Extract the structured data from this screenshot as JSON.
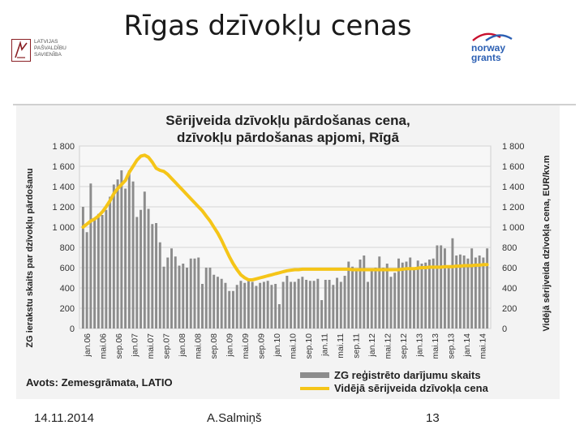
{
  "slide": {
    "title": "Rīgas dzīvokļu cenas",
    "date": "14.11.2014",
    "author": "A.Salmiņš",
    "page_number": "13"
  },
  "logos": {
    "left_lines": [
      "LATVIJAS",
      "PAŠVALDĪBU",
      "SAVIENĪBA"
    ],
    "right_lines": [
      "norway",
      "grants"
    ]
  },
  "colors": {
    "bar": "#8c8c8c",
    "line": "#f5c518",
    "frame": "#f3f3f3",
    "grid": "#d6d6d6"
  },
  "chart_data": {
    "type": "bar",
    "title_lines": [
      "Sērijveida dzīvokļu pārdošanas cena,",
      "dzīvokļu pārdošanas apjomi, Rīgā"
    ],
    "ylabel_left": "ZG ierakstu skaits par dzīvokļu pārdošanu",
    "ylabel_right": "Vidējā sērijveida dzīvokļa cena, EUR/kv.m",
    "ylim": [
      0,
      1800
    ],
    "yticks": [
      0,
      200,
      400,
      600,
      800,
      1000,
      1200,
      1400,
      1600,
      1800
    ],
    "ytick_labels": [
      "0",
      "200",
      "400",
      "600",
      "800",
      "1 000",
      "1 200",
      "1 400",
      "1 600",
      "1 800"
    ],
    "x_tick_labels": [
      "jan.06",
      "mai.06",
      "sep.06",
      "jan.07",
      "mai.07",
      "sep.07",
      "jan.08",
      "mai.08",
      "sep.08",
      "jan.09",
      "mai.09",
      "sep.09",
      "jan.10",
      "mai.10",
      "sep.10",
      "jan.11",
      "mai.11",
      "sep.11",
      "jan.12",
      "mai.12",
      "sep.12",
      "jan.13",
      "mai.13",
      "sep.13",
      "jan.14",
      "mai.14"
    ],
    "source": "Avots: Zemesgrāmata, LATIO",
    "series": [
      {
        "name": "ZG reģistrēto darījumu skaits",
        "kind": "bar",
        "values": [
          1200,
          950,
          1430,
          1080,
          1130,
          1120,
          1170,
          1300,
          1420,
          1470,
          1560,
          1380,
          1560,
          1450,
          1100,
          1170,
          1350,
          1180,
          1030,
          1040,
          850,
          610,
          700,
          790,
          710,
          620,
          640,
          600,
          690,
          690,
          700,
          440,
          600,
          600,
          530,
          510,
          490,
          450,
          370,
          370,
          430,
          470,
          450,
          470,
          460,
          420,
          450,
          460,
          470,
          430,
          440,
          240,
          460,
          520,
          460,
          460,
          490,
          510,
          480,
          470,
          470,
          490,
          280,
          480,
          480,
          430,
          500,
          460,
          520,
          660,
          610,
          580,
          680,
          720,
          460,
          590,
          600,
          710,
          600,
          640,
          510,
          550,
          690,
          650,
          660,
          700,
          590,
          670,
          640,
          650,
          680,
          690,
          820,
          820,
          790,
          600,
          890,
          720,
          730,
          720,
          690,
          790,
          700,
          720,
          700,
          790
        ]
      },
      {
        "name": "Vidējā sērijveida dzīvokļa cena",
        "kind": "line",
        "values": [
          1000,
          1030,
          1060,
          1080,
          1110,
          1150,
          1200,
          1260,
          1330,
          1380,
          1420,
          1460,
          1540,
          1600,
          1660,
          1700,
          1710,
          1690,
          1640,
          1580,
          1560,
          1550,
          1520,
          1480,
          1440,
          1400,
          1360,
          1320,
          1280,
          1240,
          1200,
          1160,
          1110,
          1060,
          1000,
          940,
          870,
          790,
          710,
          640,
          580,
          530,
          500,
          480,
          480,
          490,
          500,
          510,
          520,
          530,
          540,
          550,
          560,
          570,
          575,
          580,
          580,
          585,
          585,
          585,
          585,
          585,
          585,
          585,
          585,
          585,
          585,
          585,
          585,
          585,
          580,
          580,
          580,
          580,
          580,
          580,
          580,
          580,
          580,
          580,
          580,
          580,
          580,
          585,
          590,
          590,
          590,
          595,
          600,
          600,
          605,
          605,
          605,
          605,
          610,
          610,
          610,
          615,
          615,
          620,
          620,
          620,
          625,
          625,
          630,
          630
        ]
      }
    ]
  }
}
